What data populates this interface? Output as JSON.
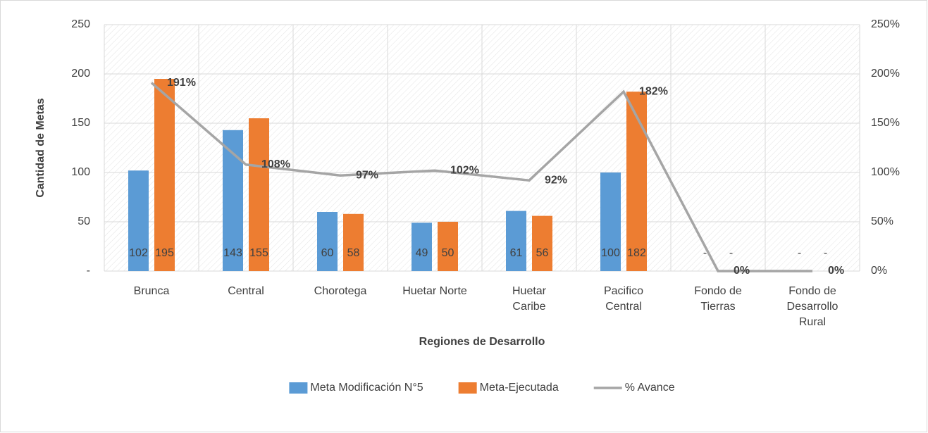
{
  "chart_data": {
    "type": "bar",
    "x_label": "Regiones de Desarrollo",
    "y_label": "Cantidad de Metas",
    "categories": [
      "Brunca",
      "Central",
      "Chorotega",
      "Huetar Norte",
      "Huetar\nCaribe",
      "Pacifico\nCentral",
      "Fondo de\nTierras",
      "Fondo de\nDesarrollo\nRural"
    ],
    "series": [
      {
        "name": "Meta Modificación N°5",
        "color": "#5b9bd5",
        "values": [
          102,
          143,
          60,
          49,
          61,
          100,
          0,
          0
        ],
        "value_labels": [
          "102",
          "143",
          "60",
          "49",
          "61",
          "100",
          "-",
          "-"
        ]
      },
      {
        "name": "Meta-Ejecutada",
        "color": "#ed7d31",
        "values": [
          195,
          155,
          58,
          50,
          56,
          182,
          0,
          0
        ],
        "value_labels": [
          "195",
          "155",
          "58",
          "50",
          "56",
          "182",
          "-",
          "-"
        ]
      },
      {
        "name": "% Avance",
        "type": "line",
        "axis": "y2",
        "color": "#a5a5a5",
        "values": [
          191,
          108,
          97,
          102,
          92,
          182,
          0,
          0
        ],
        "value_labels": [
          "191%",
          "108%",
          "97%",
          "102%",
          "92%",
          "182%",
          "0%",
          "0%"
        ]
      }
    ],
    "ylim": [
      0,
      250
    ],
    "yticks": [
      {
        "value": 0,
        "label": "-"
      },
      50,
      100,
      150,
      200,
      250
    ],
    "y2lim": [
      0,
      250
    ],
    "y2ticks": [
      {
        "value": 0,
        "label": "0%"
      },
      {
        "value": 50,
        "label": "50%"
      },
      {
        "value": 100,
        "label": "100%"
      },
      {
        "value": 150,
        "label": "150%"
      },
      {
        "value": 200,
        "label": "200%"
      },
      {
        "value": 250,
        "label": "250%"
      }
    ],
    "grid": true,
    "legend": "bottom"
  }
}
